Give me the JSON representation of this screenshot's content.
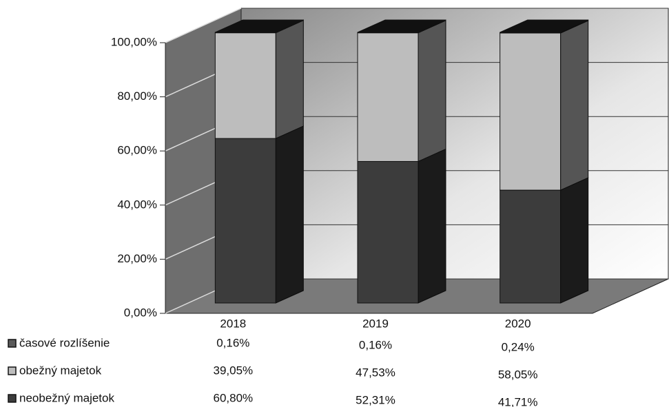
{
  "chart_data": {
    "type": "stacked_bar_3d",
    "categories": [
      "2018",
      "2019",
      "2020"
    ],
    "series": [
      {
        "name": "neobežný majetok",
        "color": "#3c3c3c",
        "values": [
          60.8,
          52.31,
          41.71
        ],
        "value_labels": [
          "60,80%",
          "52,31%",
          "41,71%"
        ]
      },
      {
        "name": "obežný majetok",
        "color": "#bdbdbd",
        "values": [
          39.05,
          47.53,
          58.05
        ],
        "value_labels": [
          "39,05%",
          "47,53%",
          "58,05%"
        ]
      },
      {
        "name": "časové rozlíšenie",
        "color": "#5a5a5a",
        "values": [
          0.16,
          0.16,
          0.24
        ],
        "value_labels": [
          "0,16%",
          "0,16%",
          "0,24%"
        ]
      }
    ],
    "ylim": [
      0,
      100
    ],
    "yticks": [
      {
        "value": 0,
        "label": "0,00%"
      },
      {
        "value": 20,
        "label": "20,00%"
      },
      {
        "value": 40,
        "label": "40,00%"
      },
      {
        "value": 60,
        "label": "60,00%"
      },
      {
        "value": 80,
        "label": "80,00%"
      },
      {
        "value": 100,
        "label": "100,00%"
      }
    ],
    "grid": true
  }
}
